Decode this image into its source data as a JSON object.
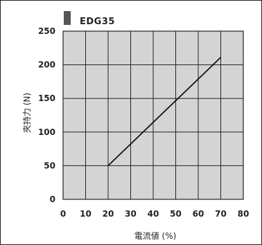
{
  "chart_data": {
    "type": "line",
    "legend": {
      "label": "EDG35",
      "color": "#555555",
      "placement": "top-left"
    },
    "xlabel": "電流値 (%)",
    "ylabel": "夾持力 (N)",
    "xlim": [
      0,
      80
    ],
    "ylim": [
      0,
      250
    ],
    "x_ticks": [
      0,
      10,
      20,
      30,
      40,
      50,
      60,
      70,
      80
    ],
    "y_ticks": [
      0,
      50,
      100,
      150,
      200,
      250
    ],
    "grid": true,
    "background": "#d4d4d4",
    "series": [
      {
        "name": "EDG35",
        "color": "#111111",
        "x": [
          20,
          70
        ],
        "y": [
          50,
          211
        ]
      }
    ]
  }
}
